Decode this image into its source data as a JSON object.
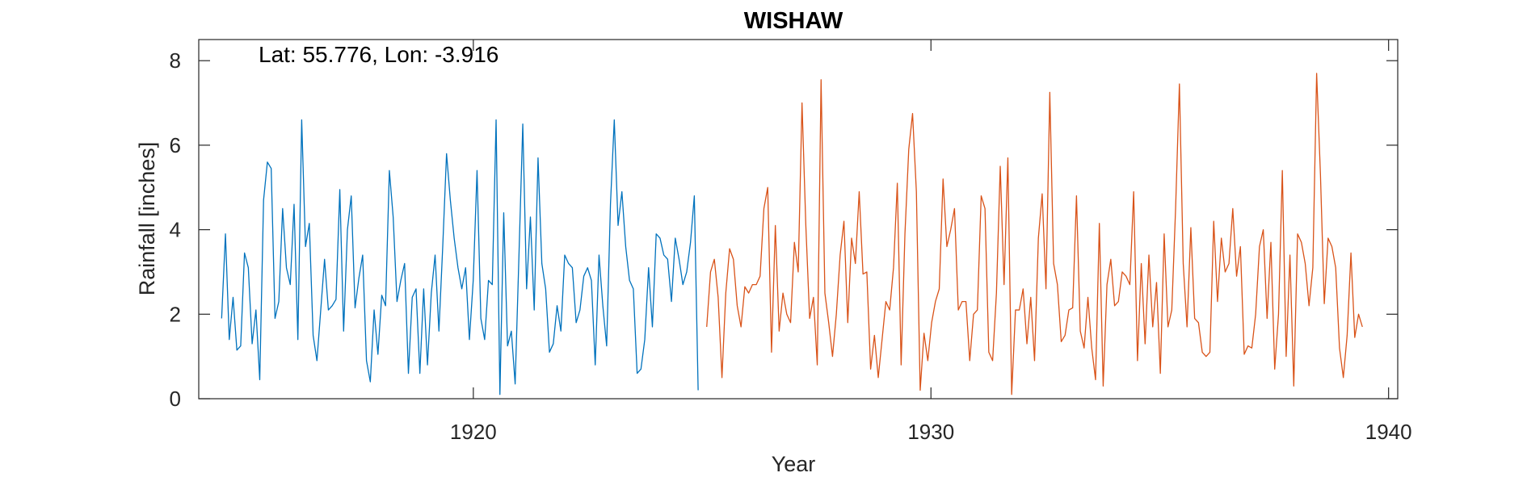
{
  "chart_data": {
    "type": "line",
    "title": "WISHAW",
    "annotation": "Lat: 55.776, Lon: -3.916",
    "xlabel": "Year",
    "ylabel": "Rainfall [inches]",
    "xlim": [
      1914,
      1940.2
    ],
    "ylim": [
      0,
      8.5
    ],
    "xticks": [
      1920,
      1930,
      1940
    ],
    "yticks": [
      0,
      2,
      4,
      6,
      8
    ],
    "grid": false,
    "colors": {
      "series_1": "#0072BD",
      "series_2": "#D95319",
      "axis": "#262626"
    },
    "series": [
      {
        "name": "series_1",
        "x_start": 1914.5,
        "x_step": 0.0833,
        "values": [
          1.9,
          3.9,
          1.4,
          2.4,
          1.15,
          1.25,
          3.45,
          3.1,
          1.3,
          2.1,
          0.45,
          4.7,
          5.6,
          5.45,
          1.9,
          2.3,
          4.5,
          3.1,
          2.7,
          4.6,
          1.4,
          6.6,
          3.6,
          4.15,
          1.5,
          0.9,
          2.1,
          3.3,
          2.1,
          2.2,
          2.35,
          4.95,
          1.6,
          4.0,
          4.8,
          2.15,
          2.85,
          3.4,
          0.9,
          0.4,
          2.1,
          1.05,
          2.45,
          2.2,
          5.4,
          4.3,
          2.3,
          2.8,
          3.2,
          0.6,
          2.4,
          2.6,
          0.6,
          2.6,
          0.8,
          2.5,
          3.4,
          1.6,
          3.6,
          5.8,
          4.7,
          3.8,
          3.1,
          2.6,
          3.1,
          1.4,
          2.8,
          5.4,
          1.9,
          1.4,
          2.8,
          2.7,
          6.6,
          0.1,
          4.4,
          1.25,
          1.6,
          0.35,
          3.4,
          6.5,
          2.6,
          4.3,
          2.1,
          5.7,
          3.2,
          2.6,
          1.1,
          1.3,
          2.2,
          1.6,
          3.4,
          3.2,
          3.1,
          1.8,
          2.1,
          2.9,
          3.1,
          2.8,
          0.8,
          3.4,
          2.2,
          1.25,
          4.6,
          6.6,
          4.1,
          4.9,
          3.6,
          2.8,
          2.6,
          0.6,
          0.7,
          1.4,
          3.1,
          1.7,
          3.9,
          3.8,
          3.4,
          3.3,
          2.3,
          3.8,
          3.3,
          2.7,
          3.0,
          3.7,
          4.8,
          0.2
        ]
      },
      {
        "name": "series_2",
        "x_start": 1925.1,
        "x_step": 0.0833,
        "values": [
          1.7,
          3.0,
          3.3,
          2.4,
          0.5,
          2.5,
          3.55,
          3.3,
          2.2,
          1.7,
          2.65,
          2.5,
          2.7,
          2.7,
          2.9,
          4.5,
          5.0,
          1.1,
          4.1,
          1.6,
          2.5,
          2.0,
          1.8,
          3.7,
          3.0,
          7.0,
          4.1,
          1.9,
          2.4,
          0.8,
          7.55,
          2.5,
          1.8,
          1.0,
          2.0,
          3.4,
          4.2,
          1.8,
          3.8,
          3.2,
          4.9,
          2.95,
          3.0,
          0.7,
          1.5,
          0.5,
          1.4,
          2.3,
          2.1,
          3.1,
          5.1,
          0.8,
          3.9,
          5.9,
          6.75,
          4.9,
          0.2,
          1.55,
          0.9,
          1.8,
          2.3,
          2.6,
          5.2,
          3.6,
          4.0,
          4.5,
          2.1,
          2.3,
          2.3,
          0.9,
          2.0,
          2.1,
          4.8,
          4.5,
          1.1,
          0.9,
          2.5,
          5.5,
          2.7,
          5.7,
          0.1,
          2.1,
          2.1,
          2.6,
          1.3,
          2.4,
          0.9,
          3.8,
          4.85,
          2.6,
          7.25,
          3.2,
          2.7,
          1.35,
          1.5,
          2.1,
          2.15,
          4.8,
          1.6,
          1.2,
          2.4,
          1.2,
          0.45,
          4.15,
          0.3,
          2.7,
          3.3,
          2.2,
          2.3,
          3.0,
          2.9,
          2.7,
          4.9,
          0.9,
          3.2,
          1.3,
          3.4,
          1.7,
          2.75,
          0.6,
          3.9,
          1.7,
          2.1,
          4.5,
          7.45,
          3.2,
          1.7,
          4.05,
          1.9,
          1.8,
          1.1,
          1.0,
          1.1,
          4.2,
          2.3,
          3.8,
          3.0,
          3.2,
          4.5,
          2.9,
          3.6,
          1.05,
          1.25,
          1.2,
          2.0,
          3.6,
          4.0,
          1.9,
          3.7,
          0.7,
          2.0,
          5.4,
          1.0,
          3.4,
          0.3,
          3.9,
          3.7,
          3.2,
          2.2,
          3.1,
          7.7,
          5.3,
          2.25,
          3.8,
          3.6,
          3.1,
          1.2,
          0.5,
          1.5,
          3.45,
          1.45,
          2.0,
          1.7
        ]
      }
    ]
  }
}
